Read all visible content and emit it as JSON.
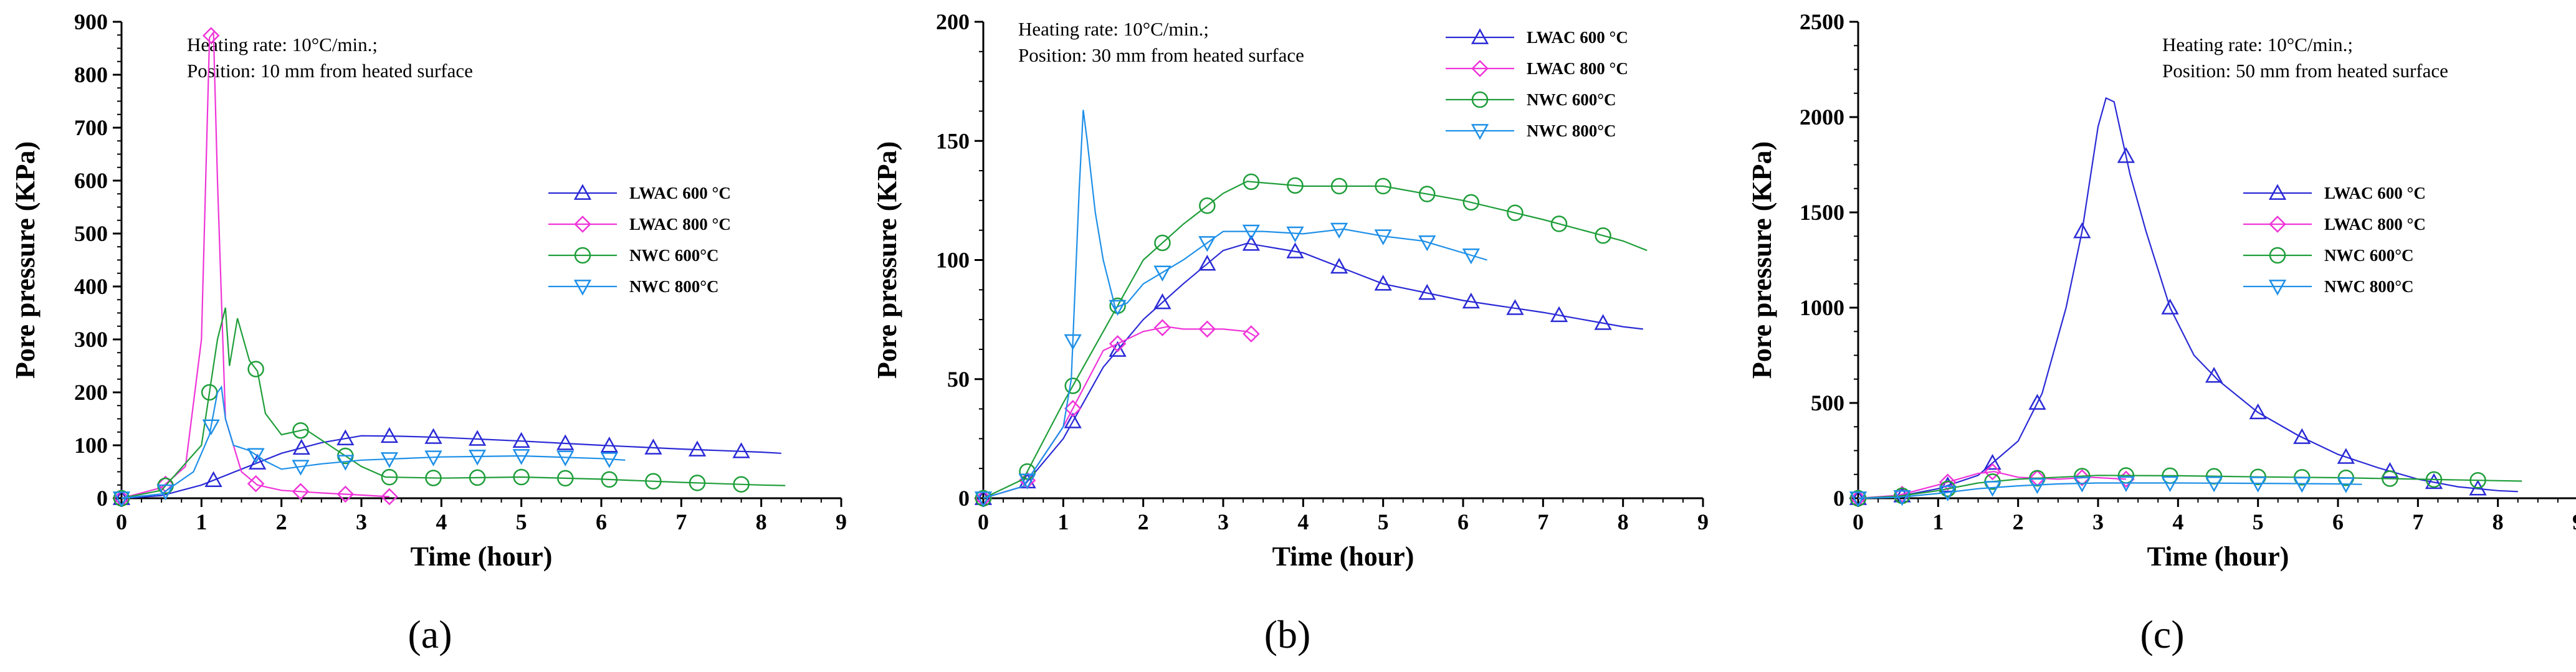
{
  "colors": {
    "lwac600": "#2a2ad6",
    "lwac800": "#ef34d8",
    "nwc600": "#1f9e3a",
    "nwc800": "#1e90e8"
  },
  "chart_data": [
    {
      "type": "line",
      "caption": "(a)",
      "xlabel": "Time (hour)",
      "ylabel": "Pore pressure (KPa)",
      "xlim": [
        0,
        9
      ],
      "ylim": [
        0,
        900
      ],
      "xticks": [
        "0",
        "1",
        "2",
        "3",
        "4",
        "5",
        "6",
        "7",
        "8",
        "9"
      ],
      "yticks": [
        "0",
        "100",
        "200",
        "300",
        "400",
        "500",
        "600",
        "700",
        "800",
        "900"
      ],
      "annotation": [
        "Heating rate: 10°C/min.;",
        "Position: 10 mm from heated surface"
      ],
      "legend": [
        "LWAC 600 °C",
        "LWAC 800 °C",
        "NWC 600°C",
        "NWC 800°C"
      ],
      "series": [
        {
          "name": "LWAC 600 °C",
          "marker": "triangle-up",
          "x": [
            0,
            0.5,
            1,
            1.5,
            2,
            2.5,
            3,
            3.5,
            4,
            5,
            6,
            7,
            8,
            8.25
          ],
          "y": [
            0,
            5,
            25,
            55,
            85,
            105,
            118,
            117,
            115,
            108,
            100,
            93,
            87,
            85
          ],
          "marker_x": [
            0,
            1.15,
            1.7,
            2.25,
            2.8,
            3.35,
            3.9,
            4.45,
            5.0,
            5.55,
            6.1,
            6.65,
            7.2,
            7.75
          ]
        },
        {
          "name": "LWAC 800 °C",
          "marker": "diamond",
          "x": [
            0,
            0.5,
            0.8,
            1.0,
            1.1,
            1.15,
            1.2,
            1.3,
            1.5,
            1.7,
            2.0,
            2.5,
            3.0,
            3.35
          ],
          "y": [
            0,
            20,
            60,
            300,
            870,
            880,
            600,
            150,
            50,
            25,
            15,
            10,
            6,
            3
          ],
          "marker_x": [
            0,
            0.55,
            1.12,
            1.68,
            2.24,
            2.8,
            3.35
          ]
        },
        {
          "name": "NWC 600°C",
          "marker": "circle",
          "x": [
            0,
            0.5,
            1.0,
            1.2,
            1.3,
            1.35,
            1.45,
            1.6,
            1.7,
            1.8,
            2.0,
            2.3,
            2.6,
            2.8,
            3.0,
            3.3,
            4,
            5,
            6,
            7,
            8,
            8.3
          ],
          "y": [
            0,
            15,
            100,
            300,
            360,
            250,
            340,
            260,
            240,
            160,
            120,
            130,
            100,
            80,
            60,
            40,
            38,
            40,
            36,
            30,
            25,
            24
          ],
          "marker_x": [
            0,
            0.55,
            1.1,
            1.68,
            2.24,
            2.8,
            3.35,
            3.9,
            4.45,
            5.0,
            5.55,
            6.1,
            6.65,
            7.2,
            7.75
          ]
        },
        {
          "name": "NWC 800°C",
          "marker": "triangle-down",
          "x": [
            0,
            0.5,
            0.9,
            1.1,
            1.2,
            1.25,
            1.3,
            1.4,
            1.6,
            1.8,
            2.0,
            2.5,
            3.0,
            4,
            5,
            6,
            6.3
          ],
          "y": [
            0,
            8,
            50,
            120,
            200,
            210,
            150,
            100,
            90,
            70,
            55,
            65,
            72,
            78,
            80,
            75,
            72
          ],
          "marker_x": [
            0,
            0.55,
            1.12,
            1.68,
            2.24,
            2.8,
            3.35,
            3.9,
            4.45,
            5.0,
            5.55,
            6.1
          ]
        }
      ]
    },
    {
      "type": "line",
      "caption": "(b)",
      "xlabel": "Time (hour)",
      "ylabel": "Pore pressure (KPa)",
      "xlim": [
        0,
        9
      ],
      "ylim": [
        0,
        200
      ],
      "xticks": [
        "0",
        "1",
        "2",
        "3",
        "4",
        "5",
        "6",
        "7",
        "8",
        "9"
      ],
      "yticks": [
        "0",
        "50",
        "100",
        "150",
        "200"
      ],
      "annotation": [
        "Heating rate: 10°C/min.;",
        "Position: 30 mm from heated surface"
      ],
      "legend": [
        "LWAC 600 °C",
        "LWAC 800 °C",
        "NWC 600°C",
        "NWC 800°C"
      ],
      "series": [
        {
          "name": "LWAC 600 °C",
          "marker": "triangle-up",
          "x": [
            0,
            0.5,
            1,
            1.5,
            2,
            2.5,
            3,
            3.3,
            4,
            5,
            6,
            7,
            8,
            8.25
          ],
          "y": [
            0,
            5,
            25,
            55,
            75,
            90,
            104,
            107,
            103,
            90,
            83,
            78,
            72,
            71
          ],
          "marker_x": [
            0,
            0.55,
            1.12,
            1.68,
            2.24,
            2.8,
            3.35,
            3.9,
            4.45,
            5.0,
            5.55,
            6.1,
            6.65,
            7.2,
            7.75
          ]
        },
        {
          "name": "LWAC 800 °C",
          "marker": "diamond",
          "x": [
            0,
            0.5,
            1,
            1.5,
            2,
            2.3,
            2.5,
            3,
            3.3,
            3.4
          ],
          "y": [
            0,
            5,
            30,
            62,
            70,
            72,
            71,
            71,
            70,
            68
          ],
          "marker_x": [
            0,
            0.55,
            1.12,
            1.68,
            2.24,
            2.8,
            3.35
          ]
        },
        {
          "name": "NWC 600°C",
          "marker": "circle",
          "x": [
            0,
            0.5,
            1,
            1.5,
            2,
            2.5,
            3,
            3.3,
            4,
            5,
            6,
            7,
            8,
            8.3
          ],
          "y": [
            0,
            8,
            40,
            70,
            100,
            115,
            128,
            133,
            131,
            131,
            125,
            117,
            108,
            104
          ],
          "marker_x": [
            0,
            0.55,
            1.12,
            1.68,
            2.24,
            2.8,
            3.35,
            3.9,
            4.45,
            5.0,
            5.55,
            6.1,
            6.65,
            7.2,
            7.75
          ]
        },
        {
          "name": "NWC 800°C",
          "marker": "triangle-down",
          "x": [
            0,
            0.5,
            1.0,
            1.1,
            1.2,
            1.25,
            1.3,
            1.4,
            1.5,
            1.65,
            1.8,
            2.0,
            2.5,
            3.0,
            3.5,
            4,
            4.5,
            5,
            5.5,
            6,
            6.3
          ],
          "y": [
            0,
            5,
            30,
            50,
            130,
            163,
            150,
            120,
            100,
            80,
            82,
            90,
            100,
            112,
            112,
            111,
            113,
            110,
            108,
            103,
            100
          ],
          "marker_x": [
            0,
            0.55,
            1.12,
            1.68,
            2.24,
            2.8,
            3.35,
            3.9,
            4.45,
            5.0,
            5.55,
            6.1
          ]
        }
      ]
    },
    {
      "type": "line",
      "caption": "(c)",
      "xlabel": "Time (hour)",
      "ylabel": "Pore pressure (KPa)",
      "xlim": [
        0,
        9
      ],
      "ylim": [
        0,
        2500
      ],
      "xticks": [
        "0",
        "1",
        "2",
        "3",
        "4",
        "5",
        "6",
        "7",
        "8",
        "9"
      ],
      "yticks": [
        "0",
        "500",
        "1000",
        "1500",
        "2000",
        "2500"
      ],
      "annotation": [
        "Heating rate: 10°C/min.;",
        "Position: 50 mm from heated surface"
      ],
      "legend": [
        "LWAC 600 °C",
        "LWAC 800 °C",
        "NWC 600°C",
        "NWC 800°C"
      ],
      "series": [
        {
          "name": "LWAC 600 °C",
          "marker": "triangle-up",
          "x": [
            0,
            0.5,
            1,
            1.5,
            2,
            2.3,
            2.6,
            2.8,
            3.0,
            3.1,
            3.2,
            3.4,
            3.6,
            3.9,
            4.2,
            4.5,
            5,
            5.5,
            6,
            6.5,
            7,
            7.5,
            8,
            8.25
          ],
          "y": [
            0,
            10,
            50,
            120,
            300,
            550,
            1000,
            1400,
            1950,
            2100,
            2080,
            1700,
            1400,
            1000,
            750,
            620,
            450,
            330,
            230,
            160,
            100,
            60,
            40,
            35
          ],
          "marker_x": [
            0,
            0.55,
            1.12,
            1.68,
            2.24,
            2.8,
            3.35,
            3.9,
            4.45,
            5.0,
            5.55,
            6.1,
            6.65,
            7.2,
            7.75
          ]
        },
        {
          "name": "LWAC 800 °C",
          "marker": "diamond",
          "x": [
            0,
            0.5,
            1,
            1.5,
            1.7,
            2.0,
            2.5,
            2.9,
            3.35
          ],
          "y": [
            0,
            15,
            70,
            130,
            140,
            110,
            100,
            110,
            100
          ],
          "marker_x": [
            0,
            0.55,
            1.12,
            1.68,
            2.24,
            2.8,
            3.35
          ]
        },
        {
          "name": "NWC 600°C",
          "marker": "circle",
          "x": [
            0,
            0.5,
            1,
            1.5,
            2,
            2.5,
            3,
            4,
            5,
            6,
            7,
            8,
            8.3
          ],
          "y": [
            0,
            10,
            40,
            80,
            100,
            110,
            120,
            118,
            112,
            108,
            100,
            92,
            90
          ],
          "marker_x": [
            0,
            0.55,
            1.12,
            1.68,
            2.24,
            2.8,
            3.35,
            3.9,
            4.45,
            5.0,
            5.55,
            6.1,
            6.65,
            7.2,
            7.75
          ]
        },
        {
          "name": "NWC 800°C",
          "marker": "triangle-down",
          "x": [
            0,
            0.5,
            1,
            1.5,
            2,
            2.5,
            3,
            4,
            5,
            6,
            6.3
          ],
          "y": [
            0,
            5,
            25,
            50,
            65,
            75,
            80,
            80,
            78,
            75,
            73
          ],
          "marker_x": [
            0,
            0.55,
            1.12,
            1.68,
            2.24,
            2.8,
            3.35,
            3.9,
            4.45,
            5.0,
            5.55,
            6.1
          ]
        }
      ]
    }
  ]
}
